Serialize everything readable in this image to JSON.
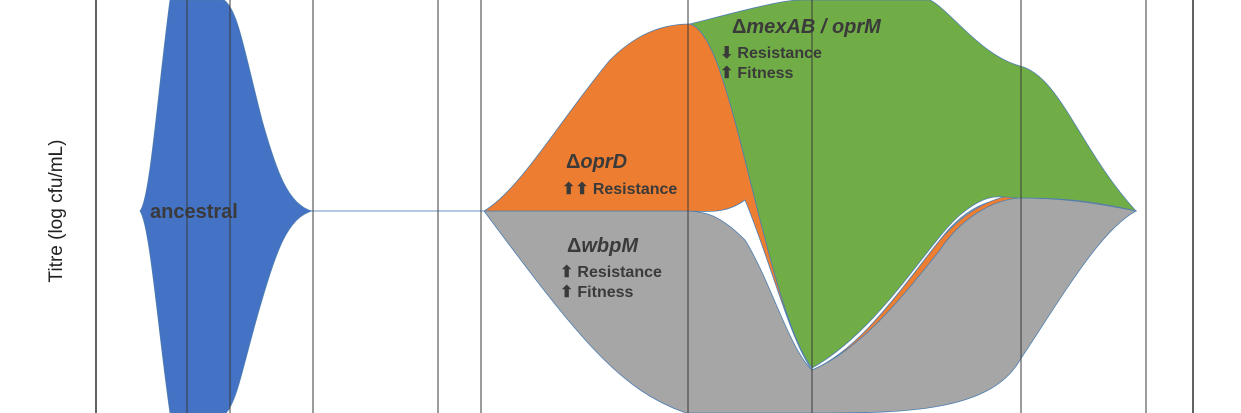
{
  "chart_data": {
    "type": "area",
    "ylabel": "Titre (log cfu/mL)",
    "series": [
      {
        "key": "ancestral",
        "label": "ancestral",
        "color": "#4472c4"
      },
      {
        "key": "oprd",
        "label": "oprD",
        "prefix": "Δ",
        "color": "#ed7d31",
        "effects": [
          {
            "arrows": "⬆⬆",
            "text": "Resistance"
          }
        ]
      },
      {
        "key": "wbpm",
        "label": "wbpM",
        "prefix": "Δ",
        "color": "#a6a6a6",
        "effects": [
          {
            "arrows": "⬆",
            "text": "Resistance"
          },
          {
            "arrows": "⬆",
            "text": "Fitness"
          }
        ]
      },
      {
        "key": "mexab",
        "label": "mexAB / oprM",
        "prefix": "Δ",
        "color": "#70ad47",
        "effects": [
          {
            "arrows": "⬇",
            "text": "Resistance"
          },
          {
            "arrows": "⬆",
            "text": "Fitness"
          }
        ]
      }
    ]
  }
}
